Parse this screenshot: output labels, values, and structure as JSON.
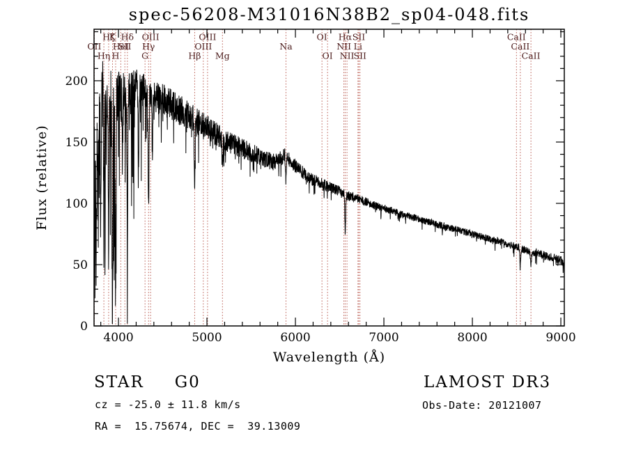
{
  "annotations": {
    "class": "STAR",
    "subclass": "G0",
    "survey": "LAMOST DR3",
    "cz": "cz = -25.0 ± 11.8 km/s",
    "obs_date": "Obs-Date: 20121007",
    "ra_dec": "RA =  15.75674, DEC =  39.13009"
  },
  "chart_data": {
    "type": "line",
    "title": "spec-56208-M31016N38B2_sp04-048.fits",
    "xlabel": "Wavelength (Å)",
    "ylabel": "Flux (relative)",
    "xlim": [
      3724,
      9039
    ],
    "ylim": [
      0,
      242
    ],
    "x_ticks": [
      4000,
      5000,
      6000,
      7000,
      8000,
      9000
    ],
    "y_ticks": [
      0,
      50,
      100,
      150,
      200
    ],
    "x_minor_step": 200,
    "y_minor_step": 10,
    "grid": false,
    "series_color": "#000000",
    "line_marker_color": "#b04438",
    "label_color": "#4a1a1a",
    "spectral_lines": [
      {
        "label": "OII",
        "wavelength": 3727,
        "row": 1
      },
      {
        "label": "Hη",
        "wavelength": 3835,
        "row": 2
      },
      {
        "label": "Hζ",
        "wavelength": 3889,
        "row": 0
      },
      {
        "label": "K",
        "wavelength": 3933,
        "row": 0
      },
      {
        "label": "H",
        "wavelength": 3968,
        "row": 2
      },
      {
        "label": "HeI",
        "wavelength": 4026,
        "row": 1
      },
      {
        "label": "SII",
        "wavelength": 4072,
        "row": 1
      },
      {
        "label": "Hδ",
        "wavelength": 4101,
        "row": 0
      },
      {
        "label": "G",
        "wavelength": 4300,
        "row": 2
      },
      {
        "label": "Hγ",
        "wavelength": 4340,
        "row": 1
      },
      {
        "label": "OIII",
        "wavelength": 4363,
        "row": 0
      },
      {
        "label": "Hβ",
        "wavelength": 4861,
        "row": 2
      },
      {
        "label": "OIII",
        "wavelength": 4959,
        "row": 1
      },
      {
        "label": "OIII",
        "wavelength": 5007,
        "row": 0
      },
      {
        "label": "Mg",
        "wavelength": 5175,
        "row": 2
      },
      {
        "label": "Na",
        "wavelength": 5893,
        "row": 1
      },
      {
        "label": "OI",
        "wavelength": 6300,
        "row": 0
      },
      {
        "label": "OI",
        "wavelength": 6363,
        "row": 2
      },
      {
        "label": "NII",
        "wavelength": 6548,
        "row": 1
      },
      {
        "label": "Hα",
        "wavelength": 6562,
        "row": 0
      },
      {
        "label": "NII",
        "wavelength": 6583,
        "row": 2
      },
      {
        "label": "Li",
        "wavelength": 6707,
        "row": 1
      },
      {
        "label": "SII",
        "wavelength": 6716,
        "row": 0
      },
      {
        "label": "SII",
        "wavelength": 6730,
        "row": 2
      },
      {
        "label": "CaII",
        "wavelength": 8498,
        "row": 0
      },
      {
        "label": "CaII",
        "wavelength": 8542,
        "row": 1
      },
      {
        "label": "CaII",
        "wavelength": 8662,
        "row": 2
      }
    ],
    "continuum": [
      [
        3724,
        150
      ],
      [
        3800,
        185
      ],
      [
        3900,
        180
      ],
      [
        4000,
        190
      ],
      [
        4100,
        186
      ],
      [
        4200,
        194
      ],
      [
        4300,
        190
      ],
      [
        4400,
        188
      ],
      [
        4500,
        184
      ],
      [
        4600,
        180
      ],
      [
        4700,
        176
      ],
      [
        4800,
        172
      ],
      [
        4900,
        167
      ],
      [
        5000,
        162
      ],
      [
        5100,
        157
      ],
      [
        5200,
        152
      ],
      [
        5300,
        148
      ],
      [
        5400,
        145
      ],
      [
        5500,
        141
      ],
      [
        5600,
        138
      ],
      [
        5700,
        135
      ],
      [
        5800,
        134
      ],
      [
        5880,
        140
      ],
      [
        5950,
        134
      ],
      [
        6000,
        130
      ],
      [
        6100,
        124
      ],
      [
        6200,
        119
      ],
      [
        6300,
        116
      ],
      [
        6400,
        113
      ],
      [
        6500,
        110
      ],
      [
        6600,
        106
      ],
      [
        6700,
        104
      ],
      [
        6800,
        101
      ],
      [
        6900,
        98
      ],
      [
        7000,
        96
      ],
      [
        7200,
        91
      ],
      [
        7400,
        87
      ],
      [
        7600,
        83
      ],
      [
        7800,
        79
      ],
      [
        8000,
        75
      ],
      [
        8200,
        71
      ],
      [
        8400,
        67
      ],
      [
        8600,
        62
      ],
      [
        8800,
        58
      ],
      [
        9000,
        54
      ],
      [
        9039,
        50
      ]
    ],
    "noise_profile": [
      [
        3724,
        38
      ],
      [
        3800,
        34
      ],
      [
        3900,
        28
      ],
      [
        4000,
        22
      ],
      [
        4200,
        16
      ],
      [
        4400,
        14
      ],
      [
        4600,
        13
      ],
      [
        4800,
        12
      ],
      [
        5000,
        10
      ],
      [
        5200,
        9
      ],
      [
        5500,
        8
      ],
      [
        5800,
        6.5
      ],
      [
        6000,
        5.5
      ],
      [
        6300,
        5
      ],
      [
        6600,
        4
      ],
      [
        7000,
        3.2
      ],
      [
        7500,
        2.8
      ],
      [
        8000,
        2.8
      ],
      [
        8500,
        3
      ],
      [
        9000,
        3.5
      ]
    ],
    "absorption_lines": [
      [
        3735,
        80,
        4
      ],
      [
        3750,
        110,
        4
      ],
      [
        3770,
        90,
        4
      ],
      [
        3798,
        100,
        4
      ],
      [
        3835,
        110,
        4
      ],
      [
        3889,
        120,
        4
      ],
      [
        3933,
        160,
        5
      ],
      [
        3968,
        150,
        5
      ],
      [
        4045,
        60,
        4
      ],
      [
        4101,
        110,
        5
      ],
      [
        4227,
        60,
        4
      ],
      [
        4340,
        100,
        5
      ],
      [
        4383,
        50,
        4
      ],
      [
        4861,
        55,
        5
      ],
      [
        5175,
        20,
        6
      ],
      [
        5893,
        22,
        5
      ],
      [
        6563,
        32,
        5
      ],
      [
        8542,
        14,
        6
      ],
      [
        8662,
        10,
        6
      ]
    ],
    "noise_seed": 42,
    "sample_step": 2
  }
}
